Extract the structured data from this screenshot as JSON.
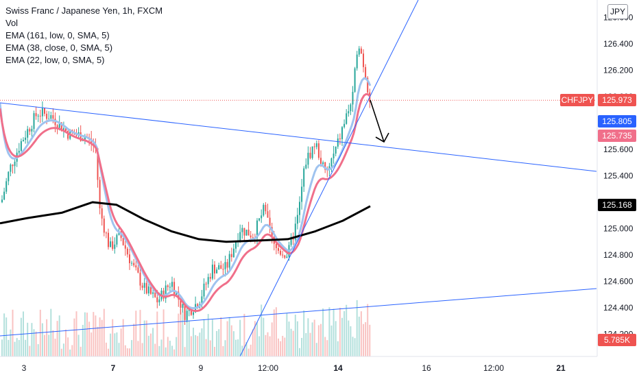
{
  "legend": {
    "title": "Swiss Franc / Japanese Yen, 1h, FXCM",
    "vol": "Vol",
    "ema1": "EMA (161, low, 0, SMA, 5)",
    "ema2": "EMA (38, close, 0, SMA, 5)",
    "ema3": "EMA (22, low, 0, SMA, 5)"
  },
  "currency_button": "JPY",
  "colors": {
    "up": "#26a69a",
    "down": "#ef5350",
    "trendline": "#2962ff",
    "ema_fast": "#9fc3ef",
    "ema_mid": "#f06f8a",
    "ema_slow": "#000000",
    "price_line": "#ef5350"
  },
  "chart_data": {
    "type": "candlestick",
    "symbol": "CHFJPY",
    "y_axis": {
      "ticks": [
        "124.200",
        "124.400",
        "124.600",
        "124.800",
        "125.000",
        "125.200",
        "125.400",
        "125.600",
        "125.800",
        "126.000",
        "126.200",
        "126.400",
        "126.600"
      ],
      "range": [
        124.14,
        126.72
      ]
    },
    "x_axis": {
      "ticks": [
        "3",
        "7",
        "9",
        "12:00",
        "14",
        "16",
        "12:00",
        "21"
      ],
      "bold_ticks": [
        "7",
        "14",
        "21"
      ]
    },
    "price_labels": [
      {
        "label": "CHFJPY",
        "value": "125.973",
        "color": "#ef5350"
      },
      {
        "label": "",
        "value": "125.805",
        "color": "#2962ff"
      },
      {
        "label": "",
        "value": "125.735",
        "color": "#f06f8a"
      },
      {
        "label": "",
        "value": "125.168",
        "color": "#000000"
      },
      {
        "label": "",
        "value": "5.785K",
        "color": "#ef5350"
      }
    ],
    "current_price": 125.973,
    "ema_slow_last": 125.168,
    "ema_fast_last": 125.805,
    "ema_mid_last": 125.735,
    "volume_last": "5.785K"
  }
}
